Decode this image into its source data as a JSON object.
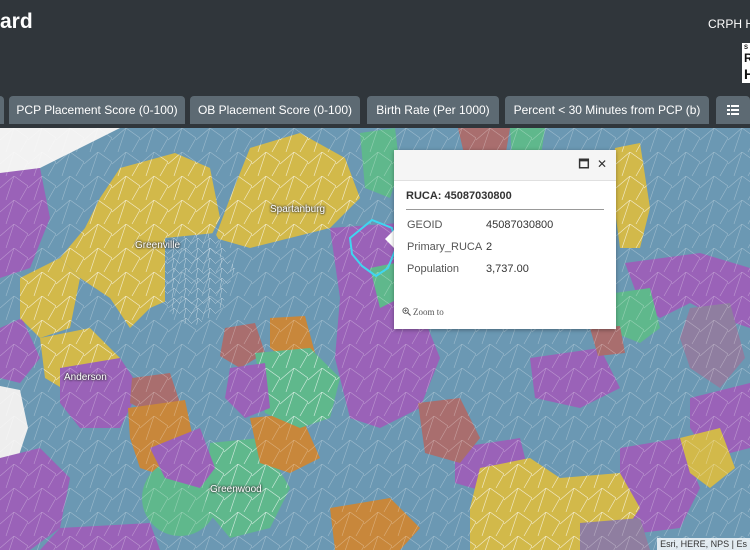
{
  "header": {
    "title": "ard",
    "org": "CRPH H"
  },
  "tabs": [
    {
      "label": "PCP Placement Score (0-100)"
    },
    {
      "label": "OB Placement Score (0-100)"
    },
    {
      "label": "Birth Rate (Per 1000)"
    },
    {
      "label": "Percent < 30 Minutes from PCP (b)"
    }
  ],
  "icons": {
    "list": "list-icon",
    "maximize": "maximize-icon",
    "close": "close-icon",
    "zoom": "zoom-in-icon"
  },
  "map": {
    "labels": {
      "spartanburg": "Spartanburg",
      "greenville": "Greenville",
      "anderson": "Anderson",
      "greenwood": "Greenwood"
    },
    "colors": {
      "blue": "#6b98b3",
      "yellow": "#d2b94a",
      "purple": "#9a62b8",
      "green": "#5fb88c",
      "orange": "#c8873b",
      "brown": "#a96e6e",
      "gray": "#8f7ea0",
      "highlight": "#3fd6f0"
    },
    "attribution": "Esri, HERE, NPS | Es"
  },
  "popup": {
    "title": "RUCA: 45087030800",
    "fields": [
      {
        "key": "GEOID",
        "value": "45087030800"
      },
      {
        "key": "Primary_RUCA",
        "value": "2"
      },
      {
        "key": "Population",
        "value": "3,737.00"
      }
    ],
    "zoom_label": "Zoom to",
    "maximize_glyph": "🗖",
    "close_glyph": "✕"
  }
}
